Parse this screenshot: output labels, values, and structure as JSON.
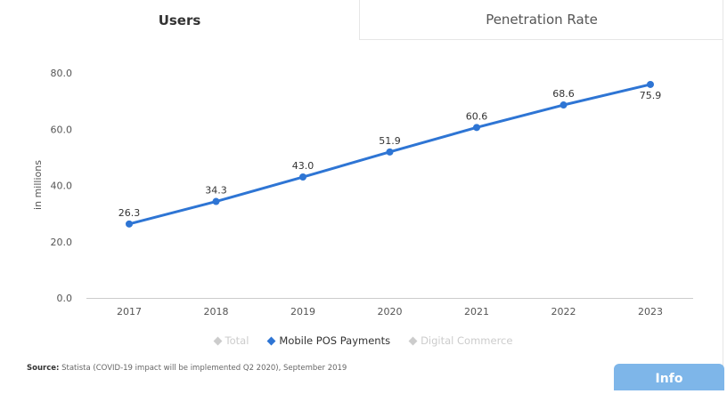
{
  "tabs": [
    {
      "label": "Users",
      "active": true
    },
    {
      "label": "Penetration Rate",
      "active": false
    }
  ],
  "legend": {
    "items": [
      {
        "label": "Total",
        "active": false
      },
      {
        "label": "Mobile POS Payments",
        "active": true
      },
      {
        "label": "Digital Commerce",
        "active": false
      }
    ]
  },
  "source": {
    "prefix": "Source:",
    "text": "Statista (COVID-19 impact will be implemented Q2 2020), September 2019"
  },
  "info_button": {
    "label": "Info"
  },
  "colors": {
    "series": "#2e75d4",
    "inactive": "#cccccc",
    "info": "#7eb6e9"
  },
  "chart_data": {
    "type": "line",
    "title": "",
    "xlabel": "",
    "ylabel": "in millions",
    "ylim": [
      0,
      80
    ],
    "yticks": [
      "0.0",
      "20.0",
      "40.0",
      "60.0",
      "80.0"
    ],
    "ytick_values": [
      0,
      20,
      40,
      60,
      80
    ],
    "grid": false,
    "categories": [
      "2017",
      "2018",
      "2019",
      "2020",
      "2021",
      "2022",
      "2023"
    ],
    "series": [
      {
        "name": "Mobile POS Payments",
        "values": [
          26.3,
          34.3,
          43.0,
          51.9,
          60.6,
          68.6,
          75.9
        ],
        "labels": [
          "26.3",
          "34.3",
          "43.0",
          "51.9",
          "60.6",
          "68.6",
          "75.9"
        ]
      }
    ]
  }
}
